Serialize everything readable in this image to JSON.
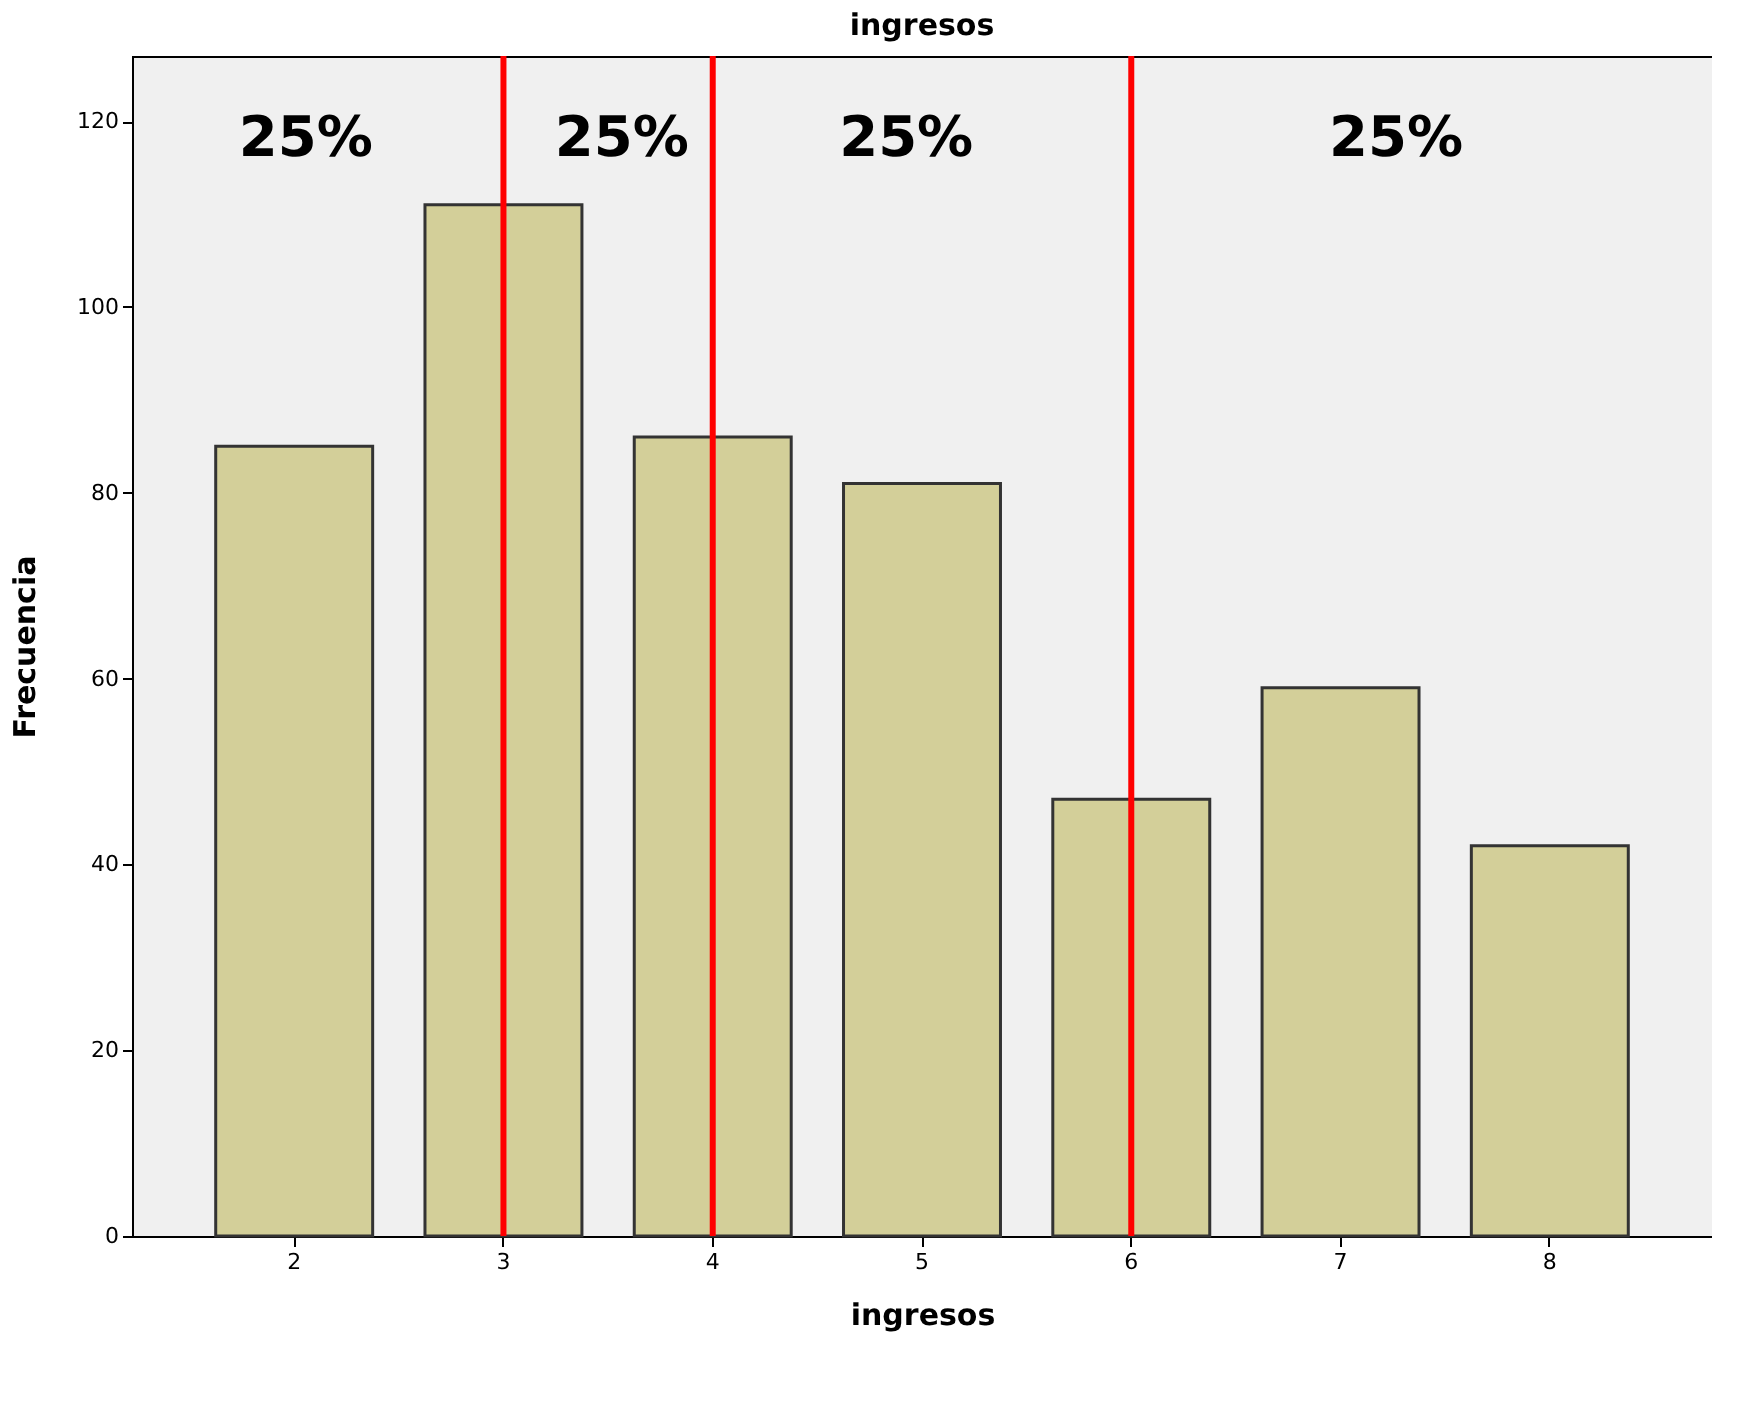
{
  "chart_data": {
    "type": "bar",
    "title": "ingresos",
    "xlabel": "ingresos",
    "ylabel": "Frecuencia",
    "categories": [
      "2",
      "3",
      "4",
      "5",
      "6",
      "7",
      "8"
    ],
    "values": [
      85,
      111,
      86,
      81,
      47,
      59,
      42
    ],
    "color": "#d3cf99",
    "ylim": [
      0,
      127
    ],
    "yticks": [
      0,
      20,
      40,
      60,
      80,
      100,
      120
    ],
    "grid": false,
    "ref_lines": [
      {
        "axis": "x",
        "value": "3",
        "color": "#ff0000"
      },
      {
        "axis": "x",
        "value": "4",
        "color": "#ff0000"
      },
      {
        "axis": "x",
        "value": "6",
        "color": "#ff0000"
      }
    ],
    "annotations": [
      "25%",
      "25%",
      "25%",
      "25%"
    ]
  }
}
